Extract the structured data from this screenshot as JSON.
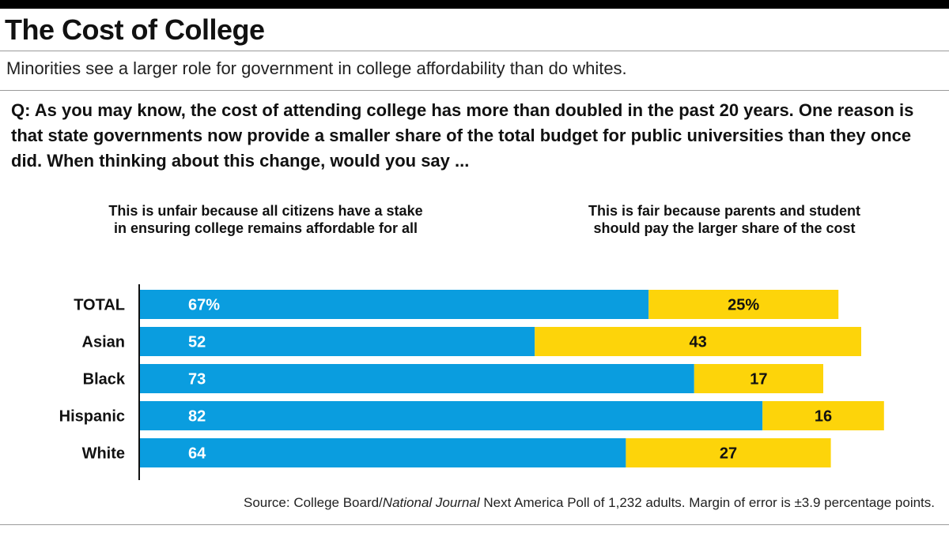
{
  "colors": {
    "unfair": "#0a9ddf",
    "fair": "#fdd40a",
    "axis": "#111111",
    "bar_label_on_blue": "#ffffff",
    "bar_label_on_yellow": "#111111"
  },
  "header": {
    "title": "The Cost of College",
    "subtitle": "Minorities see a larger role for government in college affordability than do whites.",
    "question": "Q: As you may know, the cost of attending college has more than doubled in the past 20 years. One reason is that state governments now provide a smaller share of the total budget for public universities than they once did. When thinking about this change, would you say ..."
  },
  "legend": {
    "unfair_line1": "This is unfair because all citizens have a stake",
    "unfair_line2": "in ensuring college remains affordable for all",
    "fair_line1": "This is fair because parents and student",
    "fair_line2": "should pay the larger share of the cost"
  },
  "source": {
    "prefix": "Source: College Board/",
    "italic": "National Journal",
    "suffix": " Next America Poll of 1,232 adults. Margin of error is ±3.9 percentage points."
  },
  "chart_data": {
    "type": "bar",
    "orientation": "horizontal",
    "stacked": true,
    "unit": "%",
    "categories": [
      "TOTAL",
      "Asian",
      "Black",
      "Hispanic",
      "White"
    ],
    "series": [
      {
        "key": "unfair",
        "values": [
          67,
          52,
          73,
          82,
          64
        ]
      },
      {
        "key": "fair",
        "values": [
          25,
          43,
          17,
          16,
          27
        ]
      }
    ],
    "data_labels": [
      [
        "67%",
        "25%"
      ],
      [
        "52",
        "43"
      ],
      [
        "73",
        "17"
      ],
      [
        "82",
        "16"
      ],
      [
        "64",
        "27"
      ]
    ],
    "xlim": [
      0,
      100
    ],
    "grid": false,
    "legend": "top"
  }
}
